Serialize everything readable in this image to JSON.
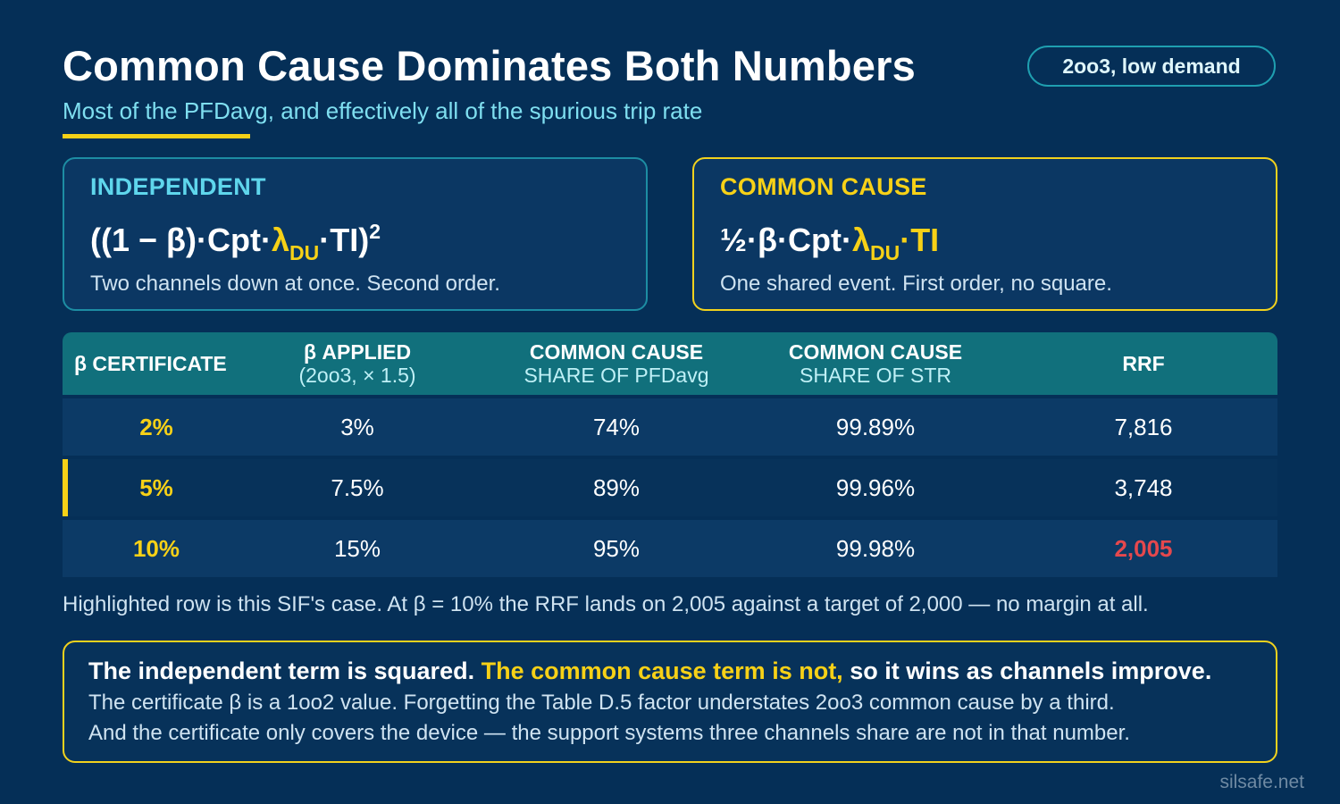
{
  "header": {
    "title": "Common Cause Dominates Both Numbers",
    "subtitle": "Most of the PFDavg, and effectively all of the spurious trip rate",
    "tag": "2oo3, low demand"
  },
  "colors": {
    "background": "#052f57",
    "accent_yellow": "#f7d117",
    "accent_cyan": "#5fd6ec",
    "header_teal": "#11707c",
    "warning_red": "#e5484d"
  },
  "cards": {
    "independent": {
      "title": "INDEPENDENT",
      "formula_prefix": "((1 − β)·Cpt·",
      "formula_lambda": "λ",
      "formula_sub": "DU",
      "formula_suffix": "·TI)",
      "formula_sup": "2",
      "description": "Two channels down at once. Second order."
    },
    "common_cause": {
      "title": "COMMON CAUSE",
      "formula_prefix": "½·β·Cpt·",
      "formula_lambda": "λ",
      "formula_sub": "DU",
      "formula_suffix": "·TI",
      "description": "One shared event. First order, no square."
    }
  },
  "table": {
    "headers": [
      {
        "line1": "β CERTIFICATE",
        "line2": ""
      },
      {
        "line1": "β APPLIED",
        "line2": "(2oo3, × 1.5)"
      },
      {
        "line1": "COMMON CAUSE",
        "line2": "SHARE OF PFDavg"
      },
      {
        "line1": "COMMON CAUSE",
        "line2": "SHARE OF STR"
      },
      {
        "line1": "RRF",
        "line2": ""
      }
    ],
    "rows": [
      [
        "2%",
        "3%",
        "74%",
        "99.89%",
        "7,816"
      ],
      [
        "5%",
        "7.5%",
        "89%",
        "99.96%",
        "3,748"
      ],
      [
        "10%",
        "15%",
        "95%",
        "99.98%",
        "2,005"
      ]
    ],
    "highlighted_row": 1
  },
  "note": "Highlighted row is this SIF's case. At β = 10% the RRF lands on 2,005 against a target of 2,000 — no margin at all.",
  "callout": {
    "lead_white": "The independent term is squared. ",
    "lead_yellow": "The common cause term is not,",
    "lead_tail": " so it wins as channels improve.",
    "line1": "The certificate β is a 1oo2 value. Forgetting the Table D.5 factor understates 2oo3 common cause by a third.",
    "line2": "And the certificate only covers the device — the support systems three channels share are not in that number."
  },
  "watermark": "silsafe.net"
}
